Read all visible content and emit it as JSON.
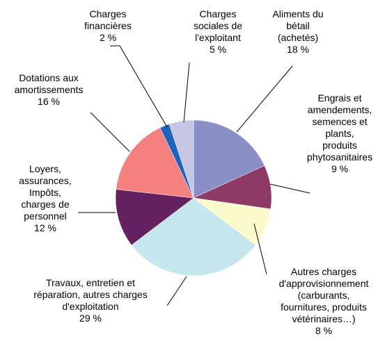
{
  "chart_data": {
    "type": "pie",
    "categories": [
      "Aliments du\nbétail\n(achetés)",
      "Engrais et\namendements,\nsemences et\nplants,\nproduits\nphytosanitaires",
      "Autres charges\nd'approvisionnement\n(carburants,\nfournitures, produits\nvétérinaires…)",
      "Travaux, entretien et\nréparation, autres charges\nd'exploitation",
      "Loyers,\nassurances,\nImpôts,\ncharges de\npersonnel",
      "Dotations aux\namortissements",
      "Charges\nfinancières",
      "Charges\nsociales de\nl'exploitant"
    ],
    "values": [
      18,
      9,
      8,
      29,
      12,
      16,
      2,
      5
    ],
    "value_labels": [
      "18 %",
      "9 %",
      "8 %",
      "29 %",
      "12 %",
      "16 %",
      "2 %",
      "5 %"
    ],
    "colors": [
      "#8b8fc8",
      "#8e3a66",
      "#fafaca",
      "#c6e6ef",
      "#65215f",
      "#f48080",
      "#2063be",
      "#c6c6e4"
    ]
  }
}
